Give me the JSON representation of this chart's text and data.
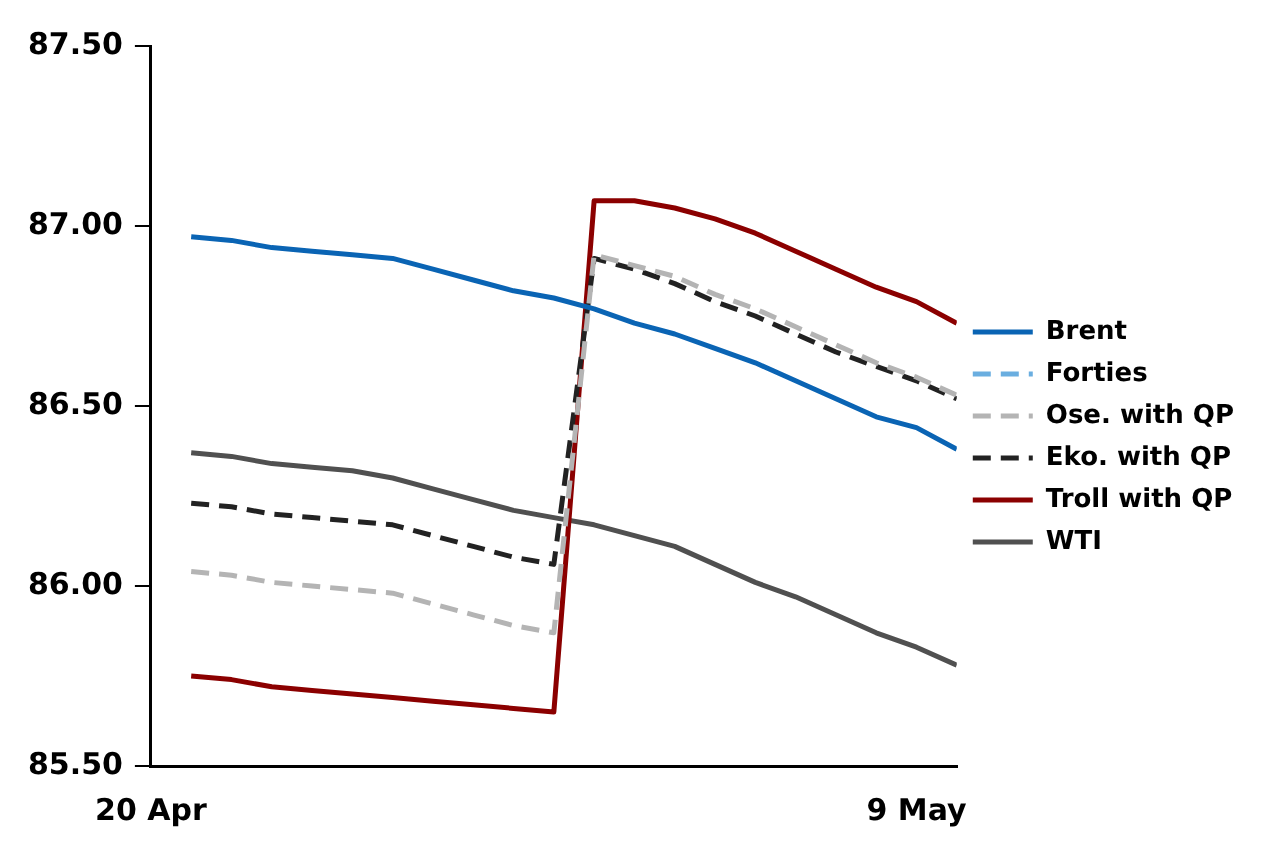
{
  "chart_data": {
    "type": "line",
    "x": [
      "--04-21",
      "--04-22",
      "--04-23",
      "--04-24",
      "--04-25",
      "--04-26",
      "--04-27",
      "--04-28",
      "--04-29",
      "--04-30",
      "--05-01",
      "--05-02",
      "--05-03",
      "--05-04",
      "--05-05",
      "--05-06",
      "--05-07",
      "--05-08",
      "--05-09",
      "--05-10"
    ],
    "series": [
      {
        "name": "Brent",
        "color": "#0a64b4",
        "line_style": "solid",
        "values": [
          86.97,
          86.96,
          86.94,
          86.93,
          86.92,
          86.91,
          86.88,
          86.85,
          86.82,
          86.8,
          86.77,
          86.73,
          86.7,
          86.66,
          86.62,
          86.57,
          86.52,
          86.47,
          86.44,
          86.38
        ]
      },
      {
        "name": "Forties",
        "color": "#6aaee0",
        "line_style": "dashed",
        "values": [
          null,
          null,
          null,
          null,
          null,
          null,
          null,
          null,
          null,
          null,
          null,
          null,
          null,
          null,
          null,
          null,
          null,
          null,
          null,
          null
        ]
      },
      {
        "name": "Ose. with QP",
        "color": "#b4b4b4",
        "line_style": "dashed",
        "values": [
          86.04,
          86.03,
          86.01,
          86.0,
          85.99,
          85.98,
          85.95,
          85.92,
          85.89,
          85.87,
          86.92,
          86.89,
          86.86,
          86.81,
          86.77,
          86.72,
          86.67,
          86.62,
          86.58,
          86.53
        ]
      },
      {
        "name": "Eko. with QP",
        "color": "#222222",
        "line_style": "dashed",
        "values": [
          86.23,
          86.22,
          86.2,
          86.19,
          86.18,
          86.17,
          86.14,
          86.11,
          86.08,
          86.06,
          86.91,
          86.88,
          86.84,
          86.79,
          86.75,
          86.7,
          86.65,
          86.61,
          86.57,
          86.52
        ]
      },
      {
        "name": "Troll with QP",
        "color": "#8b0000",
        "line_style": "solid",
        "values": [
          85.75,
          85.74,
          85.72,
          85.71,
          85.7,
          85.69,
          85.68,
          85.67,
          85.66,
          85.65,
          87.07,
          87.07,
          87.05,
          87.02,
          86.98,
          86.93,
          86.88,
          86.83,
          86.79,
          86.73
        ]
      },
      {
        "name": "WTI",
        "color": "#505050",
        "line_style": "solid",
        "values": [
          86.37,
          86.36,
          86.34,
          86.33,
          86.32,
          86.3,
          86.27,
          86.24,
          86.21,
          86.19,
          86.17,
          86.14,
          86.11,
          86.06,
          86.01,
          85.97,
          85.92,
          85.87,
          85.83,
          85.78
        ]
      }
    ],
    "xlim": [
      "--04-20",
      "--05-10"
    ],
    "xticks": [
      {
        "value": "--04-20",
        "label": "20 Apr"
      },
      {
        "value": "--05-09",
        "label": "9 May"
      }
    ],
    "ylim": [
      85.5,
      87.5
    ],
    "yticks": [
      {
        "value": 85.5,
        "label": "85.50"
      },
      {
        "value": 86,
        "label": "86.00"
      },
      {
        "value": 86.5,
        "label": "86.50"
      },
      {
        "value": 87,
        "label": "87.00"
      },
      {
        "value": 87.5,
        "label": "87.50"
      }
    ],
    "grid": false,
    "legend": "right",
    "marker": "none"
  }
}
